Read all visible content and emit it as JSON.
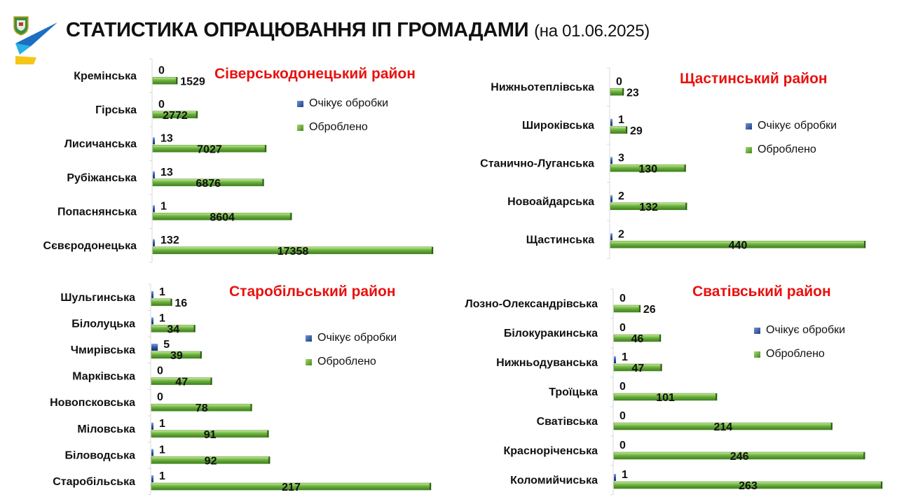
{
  "header": {
    "title": "СТАТИСТИКА ОПРАЦЮВАННЯ ІП ГРОМАДАМИ",
    "date": "(на 01.06.2025)"
  },
  "colors": {
    "accent": "#e8110f",
    "pending": "#2f56a6",
    "done": "#6cb33f"
  },
  "chart_data": [
    {
      "type": "bar",
      "title": "Сіверськодонецький район",
      "orientation": "horizontal",
      "categories": [
        "Кремінська",
        "Гірська",
        "Лисичанська",
        "Рубіжанська",
        "Попаснянська",
        "Сєвєродонецька"
      ],
      "series": [
        {
          "name": "Очікує обробки",
          "values": [
            0,
            0,
            13,
            13,
            1,
            132
          ]
        },
        {
          "name": "Оброблено",
          "values": [
            1529,
            2772,
            7027,
            6876,
            8604,
            17358
          ]
        }
      ],
      "xlim": [
        0,
        17358
      ],
      "grid": false,
      "legend": "right"
    },
    {
      "type": "bar",
      "title": "Щастинський район",
      "orientation": "horizontal",
      "categories": [
        "Нижньотеплівська",
        "Широківська",
        "Станично-Луганська",
        "Новоайдарська",
        "Щастинська"
      ],
      "series": [
        {
          "name": "Очікує обробки",
          "values": [
            0,
            1,
            3,
            2,
            2
          ]
        },
        {
          "name": "Оброблено",
          "values": [
            23,
            29,
            130,
            132,
            440
          ]
        }
      ],
      "xlim": [
        0,
        440
      ],
      "grid": false,
      "legend": "right"
    },
    {
      "type": "bar",
      "title": "Старобільський район",
      "orientation": "horizontal",
      "categories": [
        "Шульгинська",
        "Білолуцька",
        "Чмирівська",
        "Марківська",
        "Новопсковська",
        "Міловська",
        "Біловодська",
        "Старобільська"
      ],
      "series": [
        {
          "name": "Очікує обробки",
          "values": [
            1,
            1,
            5,
            0,
            0,
            1,
            1,
            1
          ]
        },
        {
          "name": "Оброблено",
          "values": [
            16,
            34,
            39,
            47,
            78,
            91,
            92,
            217
          ]
        }
      ],
      "xlim": [
        0,
        217
      ],
      "grid": false,
      "legend": "right"
    },
    {
      "type": "bar",
      "title": "Сватівський район",
      "orientation": "horizontal",
      "categories": [
        "Лозно-Олександрівська",
        "Білокуракинська",
        "Нижньодуванська",
        "Троїцька",
        "Сватівська",
        "Красноріченська",
        "Коломийчиська"
      ],
      "series": [
        {
          "name": "Очікує обробки",
          "values": [
            0,
            0,
            1,
            0,
            0,
            0,
            1
          ]
        },
        {
          "name": "Оброблено",
          "values": [
            26,
            46,
            47,
            101,
            214,
            246,
            263
          ]
        }
      ],
      "xlim": [
        0,
        263
      ],
      "grid": false,
      "legend": "right"
    }
  ]
}
